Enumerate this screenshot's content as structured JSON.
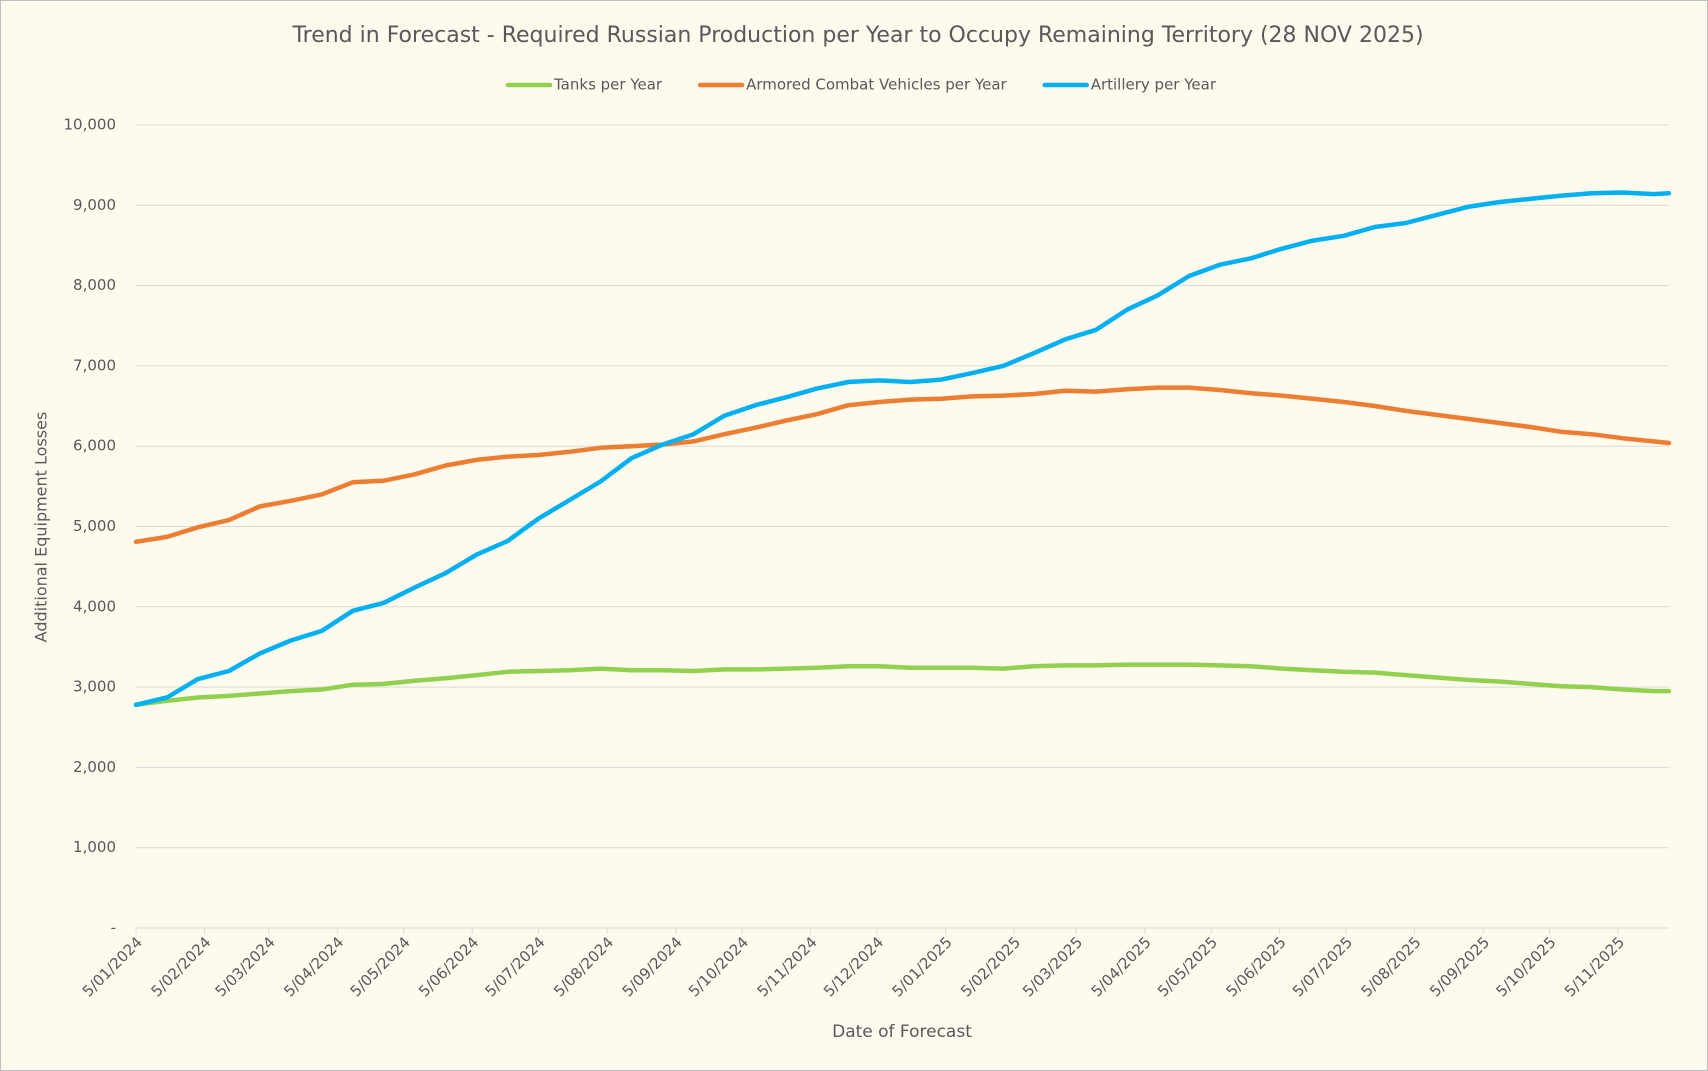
{
  "chart_data": {
    "type": "line",
    "title": "Trend in Forecast - Required Russian Production per Year to Occupy Remaining Territory (28 NOV 2025)",
    "x_label": "Date of Forecast",
    "y_label": "Additional Equipment Losses",
    "x": [
      "5/01/2024",
      "19/01/2024",
      "2/02/2024",
      "16/02/2024",
      "1/03/2024",
      "15/03/2024",
      "29/03/2024",
      "12/04/2024",
      "26/04/2024",
      "10/05/2024",
      "24/05/2024",
      "7/06/2024",
      "21/06/2024",
      "5/07/2024",
      "19/07/2024",
      "2/08/2024",
      "16/08/2024",
      "30/08/2024",
      "13/09/2024",
      "27/09/2024",
      "11/10/2024",
      "25/10/2024",
      "8/11/2024",
      "22/11/2024",
      "6/12/2024",
      "20/12/2024",
      "3/01/2025",
      "17/01/2025",
      "31/01/2025",
      "14/02/2025",
      "28/02/2025",
      "14/03/2025",
      "28/03/2025",
      "11/04/2025",
      "25/04/2025",
      "9/05/2025",
      "23/05/2025",
      "6/06/2025",
      "20/06/2025",
      "4/07/2025",
      "18/07/2025",
      "1/08/2025",
      "15/08/2025",
      "29/08/2025",
      "12/09/2025",
      "26/09/2025",
      "10/10/2025",
      "24/10/2025",
      "7/11/2025",
      "21/11/2025",
      "28/11/2025"
    ],
    "series": [
      {
        "name": "Tanks per Year",
        "color": "#92d050",
        "values": [
          2780,
          2830,
          2870,
          2890,
          2920,
          2950,
          2970,
          3030,
          3040,
          3080,
          3110,
          3150,
          3190,
          3200,
          3210,
          3230,
          3210,
          3210,
          3200,
          3220,
          3220,
          3230,
          3240,
          3260,
          3260,
          3240,
          3240,
          3240,
          3230,
          3260,
          3270,
          3270,
          3280,
          3280,
          3280,
          3270,
          3260,
          3230,
          3210,
          3190,
          3180,
          3150,
          3120,
          3090,
          3070,
          3040,
          3010,
          3000,
          2970,
          2950,
          2950
        ]
      },
      {
        "name": "Armored Combat Vehicles per Year",
        "color": "#ed7d31",
        "values": [
          4810,
          4870,
          4990,
          5080,
          5250,
          5320,
          5400,
          5550,
          5570,
          5650,
          5760,
          5830,
          5870,
          5890,
          5930,
          5980,
          6000,
          6020,
          6060,
          6150,
          6230,
          6320,
          6400,
          6510,
          6550,
          6580,
          6590,
          6620,
          6630,
          6650,
          6690,
          6680,
          6710,
          6730,
          6730,
          6700,
          6660,
          6630,
          6590,
          6550,
          6500,
          6440,
          6390,
          6340,
          6290,
          6240,
          6180,
          6150,
          6100,
          6060,
          6040
        ]
      },
      {
        "name": "Artillery per Year",
        "color": "#00b0f0",
        "values": [
          2780,
          2870,
          3100,
          3200,
          3420,
          3580,
          3700,
          3950,
          4050,
          4240,
          4420,
          4650,
          4820,
          5100,
          5330,
          5560,
          5850,
          6020,
          6150,
          6380,
          6510,
          6610,
          6720,
          6800,
          6820,
          6800,
          6830,
          6910,
          7000,
          7160,
          7330,
          7450,
          7700,
          7880,
          8120,
          8260,
          8340,
          8460,
          8560,
          8620,
          8730,
          8780,
          8880,
          8980,
          9040,
          9080,
          9120,
          9150,
          9160,
          9140,
          9150
        ]
      }
    ],
    "xlim": [
      "5/01/2024",
      "28/11/2025"
    ],
    "xticks": [
      "5/01/2024",
      "5/02/2024",
      "5/03/2024",
      "5/04/2024",
      "5/05/2024",
      "5/06/2024",
      "5/07/2024",
      "5/08/2024",
      "5/09/2024",
      "5/10/2024",
      "5/11/2024",
      "5/12/2024",
      "5/01/2025",
      "5/02/2025",
      "5/03/2025",
      "5/04/2025",
      "5/05/2025",
      "5/06/2025",
      "5/07/2025",
      "5/08/2025",
      "5/09/2025",
      "5/10/2025",
      "5/11/2025"
    ],
    "ylim": [
      0,
      10000
    ],
    "yticks": [
      {
        "value": 0,
        "label": "-"
      },
      {
        "value": 1000,
        "label": "1,000"
      },
      {
        "value": 2000,
        "label": "2,000"
      },
      {
        "value": 3000,
        "label": "3,000"
      },
      {
        "value": 4000,
        "label": "4,000"
      },
      {
        "value": 5000,
        "label": "5,000"
      },
      {
        "value": 6000,
        "label": "6,000"
      },
      {
        "value": 7000,
        "label": "7,000"
      },
      {
        "value": 8000,
        "label": "8,000"
      },
      {
        "value": 9000,
        "label": "9,000"
      },
      {
        "value": 10000,
        "label": "10,000"
      }
    ],
    "grid": true,
    "legend": "top"
  }
}
